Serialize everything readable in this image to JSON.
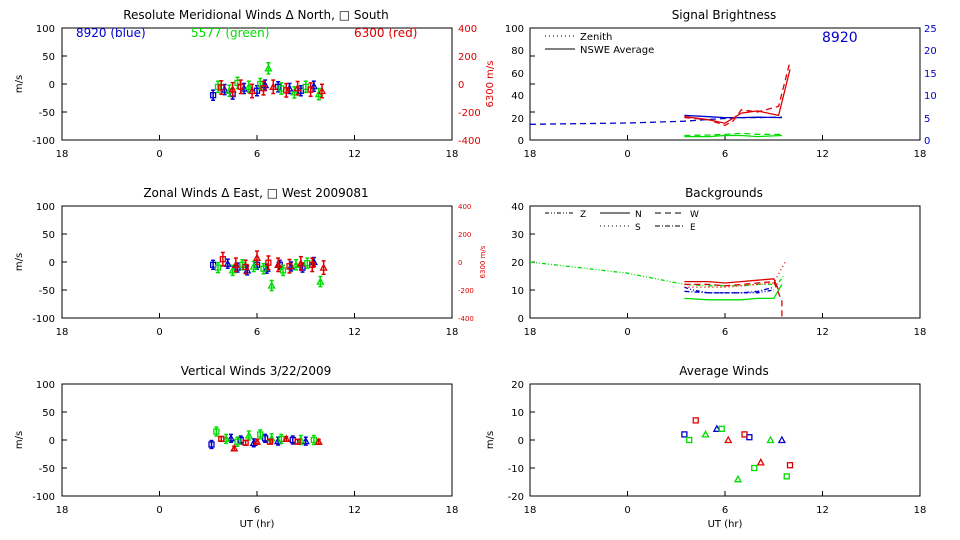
{
  "colors": {
    "blue": "#0000cc",
    "green": "#00dd00",
    "red": "#dd0000",
    "axis": "#000000"
  },
  "panels": {
    "p1": {
      "title": "Resolute Meridional Winds Δ North, □ South",
      "ylabel": "m/s",
      "yticks": [
        "100",
        "50",
        "0",
        "-50",
        "-100"
      ],
      "xticks": [
        "18",
        "0",
        "6",
        "12",
        "18"
      ],
      "right_ylabel": "6300 m/s",
      "right_yticks": [
        "400",
        "200",
        "0",
        "-200",
        "-400"
      ],
      "legend": {
        "blue": "8920 (blue)",
        "green": "5577 (green)",
        "red": "6300 (red)"
      }
    },
    "p2": {
      "title": "Signal Brightness",
      "yticks": [
        "100",
        "80",
        "60",
        "40",
        "20",
        "0"
      ],
      "right_yticks": [
        "25",
        "20",
        "15",
        "10",
        "5",
        "0"
      ],
      "xticks": [
        "18",
        "0",
        "6",
        "12",
        "18"
      ],
      "legend": {
        "zenith": "Zenith",
        "average": "NSWE Average"
      },
      "label_8920": "8920"
    },
    "p3": {
      "title": "Zonal Winds Δ East, □ West 2009081",
      "ylabel": "m/s",
      "yticks": [
        "100",
        "50",
        "0",
        "-50",
        "-100"
      ],
      "xticks": [
        "18",
        "0",
        "6",
        "12",
        "18"
      ],
      "right_ylabel": "6300 m/s",
      "right_yticks": [
        "400",
        "200",
        "0",
        "-200",
        "-400"
      ]
    },
    "p4": {
      "title": "Backgrounds",
      "yticks": [
        "40",
        "30",
        "20",
        "10",
        "0"
      ],
      "xticks": [
        "18",
        "0",
        "6",
        "12",
        "18"
      ],
      "legend": {
        "z": "Z",
        "n": "N",
        "w": "W",
        "s": "S",
        "e": "E"
      }
    },
    "p5": {
      "title": "Vertical Winds 3/22/2009",
      "ylabel": "m/s",
      "yticks": [
        "100",
        "50",
        "0",
        "-50",
        "-100"
      ],
      "xticks": [
        "18",
        "0",
        "6",
        "12",
        "18"
      ],
      "xlabel": "UT (hr)"
    },
    "p6": {
      "title": "Average Winds",
      "ylabel": "m/s",
      "yticks": [
        "20",
        "10",
        "0",
        "-10",
        "-20"
      ],
      "xticks": [
        "18",
        "0",
        "6",
        "12",
        "18"
      ],
      "xlabel": "UT (hr)"
    }
  },
  "chart_data": [
    {
      "type": "scatter",
      "title": "Resolute Meridional Winds Δ North, □ South",
      "ylabel": "m/s",
      "xlim": [
        -6,
        18
      ],
      "ylim": [
        -100,
        100
      ],
      "xtick_values": [
        -6,
        0,
        6,
        12,
        18
      ],
      "right_ylim": [
        -400,
        400
      ],
      "series": [
        {
          "name": "8920 (blue)",
          "x": [
            3.3,
            4.0,
            4.5,
            5.2,
            6.0,
            6.5,
            7.3,
            8.0,
            8.7,
            9.5
          ],
          "y": [
            -20,
            -10,
            -18,
            -8,
            -12,
            -2,
            -5,
            -8,
            -12,
            -4
          ],
          "err": 9
        },
        {
          "name": "5577 (green)",
          "x": [
            3.6,
            4.3,
            4.8,
            5.5,
            6.2,
            6.7,
            7.5,
            8.3,
            9.0,
            9.8
          ],
          "y": [
            -5,
            -12,
            2,
            -5,
            0,
            28,
            -8,
            -15,
            -5,
            -18
          ],
          "err": 10
        },
        {
          "name": "6300 (red)",
          "x": [
            3.8,
            4.5,
            5.0,
            5.7,
            6.4,
            7.0,
            7.8,
            8.5,
            9.3,
            10.0
          ],
          "y": [
            -25,
            -38,
            -20,
            -50,
            -30,
            -20,
            -45,
            -30,
            -40,
            -50
          ],
          "err": 12,
          "axis": "right"
        }
      ]
    },
    {
      "type": "line",
      "title": "Signal Brightness",
      "xlim": [
        -6,
        18
      ],
      "ylim": [
        0,
        100
      ],
      "right_ylim": [
        0,
        25
      ],
      "xtick_values": [
        -6,
        0,
        6,
        12,
        18
      ],
      "series": [
        {
          "name": "blue zenith",
          "color": "blue",
          "style": "dashed",
          "axis": "right",
          "x": [
            -6,
            0,
            3.5,
            5,
            6,
            7,
            8,
            9.5
          ],
          "y": [
            3.5,
            3.8,
            4.2,
            4.6,
            4.8,
            5.0,
            5.0,
            5.1
          ]
        },
        {
          "name": "blue average",
          "color": "blue",
          "style": "solid",
          "axis": "right",
          "x": [
            3.5,
            5,
            6,
            7,
            8,
            9.5
          ],
          "y": [
            5.5,
            5.2,
            5.0,
            5.0,
            5.1,
            5.0
          ]
        },
        {
          "name": "red zenith",
          "color": "red",
          "style": "dashed",
          "x": [
            3.5,
            5,
            6,
            6.5,
            7,
            8,
            9.3,
            10.0
          ],
          "y": [
            20,
            18,
            13,
            17,
            27,
            25,
            30,
            70
          ]
        },
        {
          "name": "red average",
          "color": "red",
          "style": "solid",
          "x": [
            3.5,
            5,
            6,
            7,
            8,
            9.3,
            10.0
          ],
          "y": [
            21,
            18,
            15,
            24,
            26,
            22,
            63
          ]
        },
        {
          "name": "green zenith",
          "color": "green",
          "style": "dashed",
          "x": [
            3.5,
            5,
            6,
            7,
            8,
            9.5
          ],
          "y": [
            4,
            4.5,
            5,
            6,
            5,
            5
          ]
        },
        {
          "name": "green average",
          "color": "green",
          "style": "solid",
          "x": [
            3.5,
            5,
            6,
            7,
            8,
            9.5
          ],
          "y": [
            3,
            3,
            4,
            4,
            3,
            4
          ]
        }
      ]
    },
    {
      "type": "scatter",
      "title": "Zonal Winds Δ East, □ West 2009081",
      "ylabel": "m/s",
      "xlim": [
        -6,
        18
      ],
      "ylim": [
        -100,
        100
      ],
      "right_ylim": [
        -400,
        400
      ],
      "xtick_values": [
        -6,
        0,
        6,
        12,
        18
      ],
      "series": [
        {
          "name": "8920 (blue)",
          "x": [
            3.3,
            4.2,
            4.8,
            5.4,
            6.0,
            6.6,
            7.4,
            8.1,
            8.8,
            9.5
          ],
          "y": [
            -5,
            -3,
            -10,
            -15,
            -5,
            -12,
            -5,
            -8,
            -10,
            0
          ],
          "err": 8
        },
        {
          "name": "5577 (green)",
          "x": [
            3.6,
            4.5,
            5.1,
            5.8,
            6.4,
            6.9,
            7.6,
            8.4,
            9.1,
            9.9
          ],
          "y": [
            -10,
            -15,
            -5,
            -8,
            -12,
            -42,
            -15,
            -5,
            -2,
            -35
          ],
          "err": 9
        },
        {
          "name": "6300 (red)",
          "x": [
            3.9,
            4.7,
            5.3,
            6.0,
            6.7,
            7.3,
            8.0,
            8.7,
            9.4,
            10.1
          ],
          "y": [
            20,
            -20,
            -35,
            30,
            -5,
            -20,
            -30,
            -10,
            -20,
            -40
          ],
          "err": 12,
          "axis": "right"
        }
      ]
    },
    {
      "type": "line",
      "title": "Backgrounds",
      "xlim": [
        -6,
        18
      ],
      "ylim": [
        0,
        40
      ],
      "xtick_values": [
        -6,
        0,
        6,
        12,
        18
      ],
      "series": [
        {
          "name": "Z (green)",
          "color": "green",
          "style": "dashdotdot",
          "x": [
            -6,
            0,
            3.5,
            5,
            6,
            7,
            8,
            9.2,
            9.6
          ],
          "y": [
            20,
            16,
            12,
            11.5,
            11.5,
            11.5,
            12,
            12,
            15
          ]
        },
        {
          "name": "Z (blue)",
          "color": "blue",
          "style": "dashdotdot",
          "x": [
            3.5,
            4,
            5,
            6,
            7,
            8,
            9.0
          ],
          "y": [
            11,
            10,
            9,
            9,
            9,
            9,
            10
          ]
        },
        {
          "name": "N (red)",
          "color": "red",
          "style": "solid",
          "x": [
            3.5,
            5,
            6,
            7,
            8,
            9.0,
            9.3
          ],
          "y": [
            13,
            13,
            12.5,
            13,
            13.5,
            14,
            10
          ]
        },
        {
          "name": "N (green)",
          "color": "green",
          "style": "solid",
          "x": [
            3.5,
            5,
            6,
            7,
            8,
            9.0,
            9.5
          ],
          "y": [
            7,
            6.5,
            6.5,
            6.5,
            7,
            7,
            12
          ]
        },
        {
          "name": "W (red)",
          "color": "red",
          "style": "dashed",
          "x": [
            3.5,
            5,
            6,
            7,
            8,
            9.0,
            9.5,
            9.5
          ],
          "y": [
            12,
            12,
            11.5,
            12,
            12.5,
            13,
            6,
            0
          ]
        },
        {
          "name": "E (blue)",
          "color": "blue",
          "style": "dashdot",
          "x": [
            3.5,
            5,
            6,
            7,
            8,
            9.0
          ],
          "y": [
            9.5,
            9,
            9,
            9,
            9.5,
            11
          ]
        },
        {
          "name": "S (red)",
          "color": "red",
          "style": "dotted",
          "x": [
            3.5,
            5,
            6,
            7,
            8,
            9.0,
            9.7
          ],
          "y": [
            11,
            11,
            11,
            11.5,
            12,
            12.5,
            20
          ]
        }
      ]
    },
    {
      "type": "scatter",
      "title": "Vertical Winds 3/22/2009",
      "ylabel": "m/s",
      "xlabel": "UT (hr)",
      "xlim": [
        -6,
        18
      ],
      "ylim": [
        -100,
        100
      ],
      "xtick_values": [
        -6,
        0,
        6,
        12,
        18
      ],
      "series": [
        {
          "name": "8920 (blue)",
          "x": [
            3.2,
            4.4,
            5.0,
            5.8,
            6.5,
            7.3,
            8.2,
            9.0
          ],
          "y": [
            -8,
            3,
            0,
            -5,
            3,
            -2,
            0,
            -2
          ],
          "err": 7
        },
        {
          "name": "5577 (green)",
          "x": [
            3.5,
            4.1,
            4.8,
            5.5,
            6.2,
            6.9,
            7.5,
            8.7,
            9.5
          ],
          "y": [
            15,
            2,
            -3,
            8,
            10,
            3,
            2,
            0,
            0
          ],
          "err": 8
        },
        {
          "name": "6300 (red)",
          "x": [
            3.8,
            4.6,
            5.3,
            6.0,
            6.8,
            7.8,
            8.5,
            9.8
          ],
          "y": [
            2,
            -15,
            -5,
            -3,
            -3,
            2,
            -3,
            -3
          ],
          "err": 4
        }
      ]
    },
    {
      "type": "scatter",
      "title": "Average Winds",
      "ylabel": "m/s",
      "xlabel": "UT (hr)",
      "xlim": [
        -6,
        18
      ],
      "ylim": [
        -20,
        20
      ],
      "xtick_values": [
        -6,
        0,
        6,
        12,
        18
      ],
      "series": [
        {
          "name": "8920 (blue)",
          "x": [
            3.5,
            5.5,
            7.5,
            9.5
          ],
          "y": [
            2,
            4,
            1,
            0
          ]
        },
        {
          "name": "5577 (green)",
          "x": [
            3.8,
            4.8,
            5.8,
            6.8,
            7.8,
            8.8,
            9.8
          ],
          "y": [
            0,
            2,
            4,
            -14,
            -10,
            0,
            -13
          ]
        },
        {
          "name": "6300 (red)",
          "x": [
            4.2,
            6.2,
            7.2,
            8.2,
            10.0
          ],
          "y": [
            7,
            0,
            2,
            -8,
            -9
          ]
        }
      ]
    }
  ]
}
